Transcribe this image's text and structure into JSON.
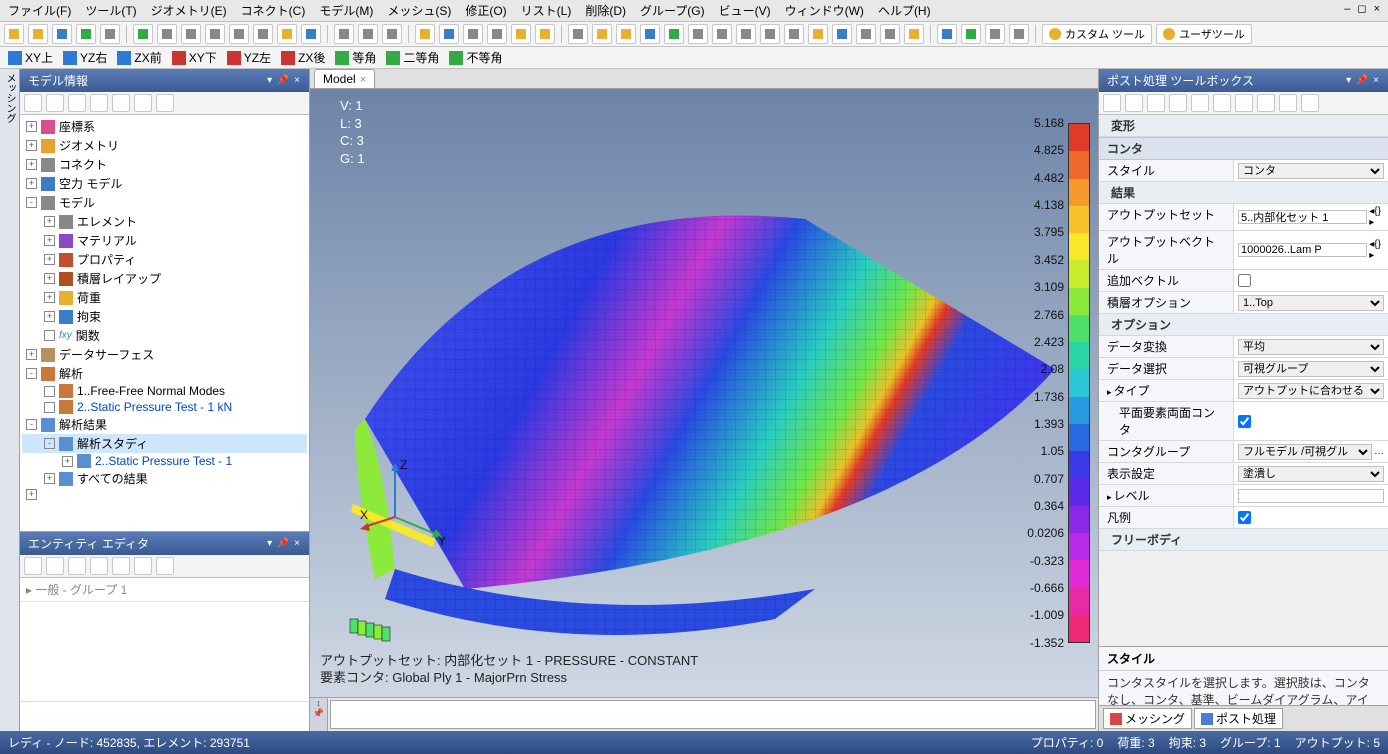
{
  "menu": [
    "ファイル(F)",
    "ツール(T)",
    "ジオメトリ(E)",
    "コネクト(C)",
    "モデル(M)",
    "メッシュ(S)",
    "修正(O)",
    "リスト(L)",
    "削除(D)",
    "グループ(G)",
    "ビュー(V)",
    "ウィンドウ(W)",
    "ヘルプ(H)"
  ],
  "win_ctrl": "– ◻ ×",
  "toolbar2": {
    "custom": "カスタム ツール",
    "user": "ユーザツール"
  },
  "viewbar": [
    "XY上",
    "YZ右",
    "ZX前",
    "XY下",
    "YZ左",
    "ZX後",
    "等角",
    "二等角",
    "不等角"
  ],
  "viewbar_colors": [
    "#2e7bd6",
    "#2e7bd6",
    "#2e7bd6",
    "#cc3333",
    "#cc3333",
    "#cc3333",
    "#33aa44",
    "#33aa44",
    "#33aa44"
  ],
  "left_panel_title": "モデル情報",
  "tree": [
    {
      "ind": 0,
      "exp": "+",
      "icon": "#d94f8c",
      "label": "座標系"
    },
    {
      "ind": 0,
      "exp": "+",
      "icon": "#e8a030",
      "label": "ジオメトリ"
    },
    {
      "ind": 0,
      "exp": "+",
      "icon": "#888",
      "label": "コネクト"
    },
    {
      "ind": 0,
      "exp": "+",
      "icon": "#3b7dc4",
      "label": "空力 モデル"
    },
    {
      "ind": 0,
      "exp": "-",
      "icon": "#888",
      "label": "モデル"
    },
    {
      "ind": 1,
      "exp": "+",
      "icon": "#888",
      "label": "エレメント"
    },
    {
      "ind": 1,
      "exp": "+",
      "icon": "#8a4ac4",
      "label": "マテリアル"
    },
    {
      "ind": 1,
      "exp": "+",
      "icon": "#c05030",
      "label": "プロパティ"
    },
    {
      "ind": 1,
      "exp": "+",
      "icon": "#b05020",
      "label": "積層レイアップ"
    },
    {
      "ind": 1,
      "exp": "+",
      "icon": "#e8b030",
      "label": "荷重"
    },
    {
      "ind": 1,
      "exp": "+",
      "icon": "#3b7dc4",
      "label": "拘束"
    },
    {
      "ind": 1,
      "exp": " ",
      "icon": "#3b7dc4",
      "label": "関数",
      "pre": "fxy"
    },
    {
      "ind": 0,
      "exp": "+",
      "icon": "#b89060",
      "label": "データサーフェス"
    },
    {
      "ind": 0,
      "exp": "-",
      "icon": "#c87838",
      "label": "解析"
    },
    {
      "ind": 1,
      "exp": " ",
      "icon": "#c87838",
      "label": "1..Free-Free Normal Modes"
    },
    {
      "ind": 1,
      "exp": " ",
      "icon": "#c87838",
      "label": "2..Static Pressure Test - 1 kN",
      "link": true
    },
    {
      "ind": 0,
      "exp": "-",
      "icon": "#5a8ed0",
      "label": "解析結果"
    },
    {
      "ind": 1,
      "exp": "-",
      "icon": "#5a8ed0",
      "label": "解析スタディ",
      "sel": true
    },
    {
      "ind": 2,
      "exp": "+",
      "icon": "#5a8ed0",
      "label": "2..Static Pressure Test - 1",
      "link": true
    },
    {
      "ind": 1,
      "exp": "+",
      "icon": "#5a8ed0",
      "label": "すべての結果"
    }
  ],
  "entity_title": "エンティティ エディタ",
  "entity_row": "一般 - グループ 1",
  "tab_label": "Model",
  "overlay": {
    "v": "V: 1",
    "l": "L: 3",
    "c": "C: 3",
    "g": "G: 1"
  },
  "caption1": "アウトプットセット: 内部化セット 1 - PRESSURE - CONSTANT",
  "caption2": "要素コンタ: Global Ply 1 - MajorPrn Stress",
  "axes": {
    "x": "X",
    "y": "Y",
    "z": "Z"
  },
  "legend_values": [
    "5.168",
    "4.825",
    "4.482",
    "4.138",
    "3.795",
    "3.452",
    "3.109",
    "2.766",
    "2.423",
    "2.08",
    "1.736",
    "1.393",
    "1.05",
    "0.707",
    "0.364",
    "0.0206",
    "-0.323",
    "-0.666",
    "-1.009",
    "-1.352"
  ],
  "legend_colors": [
    "#e23a2a",
    "#ee6a2a",
    "#f59a2a",
    "#f8c22a",
    "#f8e82a",
    "#c8ec2a",
    "#8eea3a",
    "#4ee06a",
    "#2ad6a6",
    "#2ac6d6",
    "#2a9ae0",
    "#2a6ae0",
    "#3a3ae8",
    "#5a2ae8",
    "#8a2ae8",
    "#b82ae8",
    "#e02ad6",
    "#e82aa6",
    "#ee2a76",
    "#f83a9a"
  ],
  "right_panel_title": "ポスト処理 ツールボックス",
  "props": {
    "sections": [
      {
        "type": "subsect",
        "label": "変形"
      },
      {
        "type": "sect",
        "label": "コンタ"
      },
      {
        "type": "row",
        "k": "スタイル",
        "v": "コンタ",
        "ctl": "select"
      },
      {
        "type": "subsect",
        "label": "結果"
      },
      {
        "type": "row",
        "k": "アウトプットセット",
        "v": "5..内部化セット 1",
        "ctl": "textnav"
      },
      {
        "type": "row",
        "k": "アウトプットベクトル",
        "v": "1000026..Lam P",
        "ctl": "textnav"
      },
      {
        "type": "row",
        "k": "追加ベクトル",
        "v": "",
        "ctl": "check",
        "checked": false
      },
      {
        "type": "row",
        "k": "積層オプション",
        "v": "1..Top",
        "ctl": "select"
      },
      {
        "type": "subsect",
        "label": "オプション"
      },
      {
        "type": "row",
        "k": "データ変換",
        "v": "平均",
        "ctl": "select"
      },
      {
        "type": "row",
        "k": "データ選択",
        "v": "可視グループ",
        "ctl": "select"
      },
      {
        "type": "row",
        "k": "タイプ",
        "v": "アウトプットに合わせる",
        "ctl": "select",
        "tri": true
      },
      {
        "type": "row",
        "k": "平面要素両面コンタ",
        "v": "",
        "ctl": "check",
        "checked": true,
        "indent": true
      },
      {
        "type": "row",
        "k": "コンタグループ",
        "v": "フルモデル /可視グル",
        "ctl": "select",
        "extra": true
      },
      {
        "type": "row",
        "k": "表示設定",
        "v": "塗潰し",
        "ctl": "select"
      },
      {
        "type": "row",
        "k": "レベル",
        "v": "",
        "ctl": "text",
        "tri": true
      },
      {
        "type": "row",
        "k": "凡例",
        "v": "",
        "ctl": "check",
        "checked": true
      },
      {
        "type": "subsect",
        "label": "フリーボディ"
      }
    ]
  },
  "stylebox": {
    "hd": "スタイル",
    "bd": "コンタスタイルを選択します。選択肢は、コンタなし、コンタ、基準、ビームダイアグラム、アイソサー"
  },
  "rtabs": [
    {
      "label": "メッシング",
      "color": "#d44"
    },
    {
      "label": "ポスト処理",
      "color": "#4a7ed0"
    }
  ],
  "status_left": "レディ - ノード: 452835, エレメント: 293751",
  "status_right": [
    [
      "プロパティ",
      "0"
    ],
    [
      "荷重",
      "3"
    ],
    [
      "拘束",
      "3"
    ],
    [
      "グループ",
      "1"
    ],
    [
      "アウトプット",
      "5"
    ]
  ]
}
